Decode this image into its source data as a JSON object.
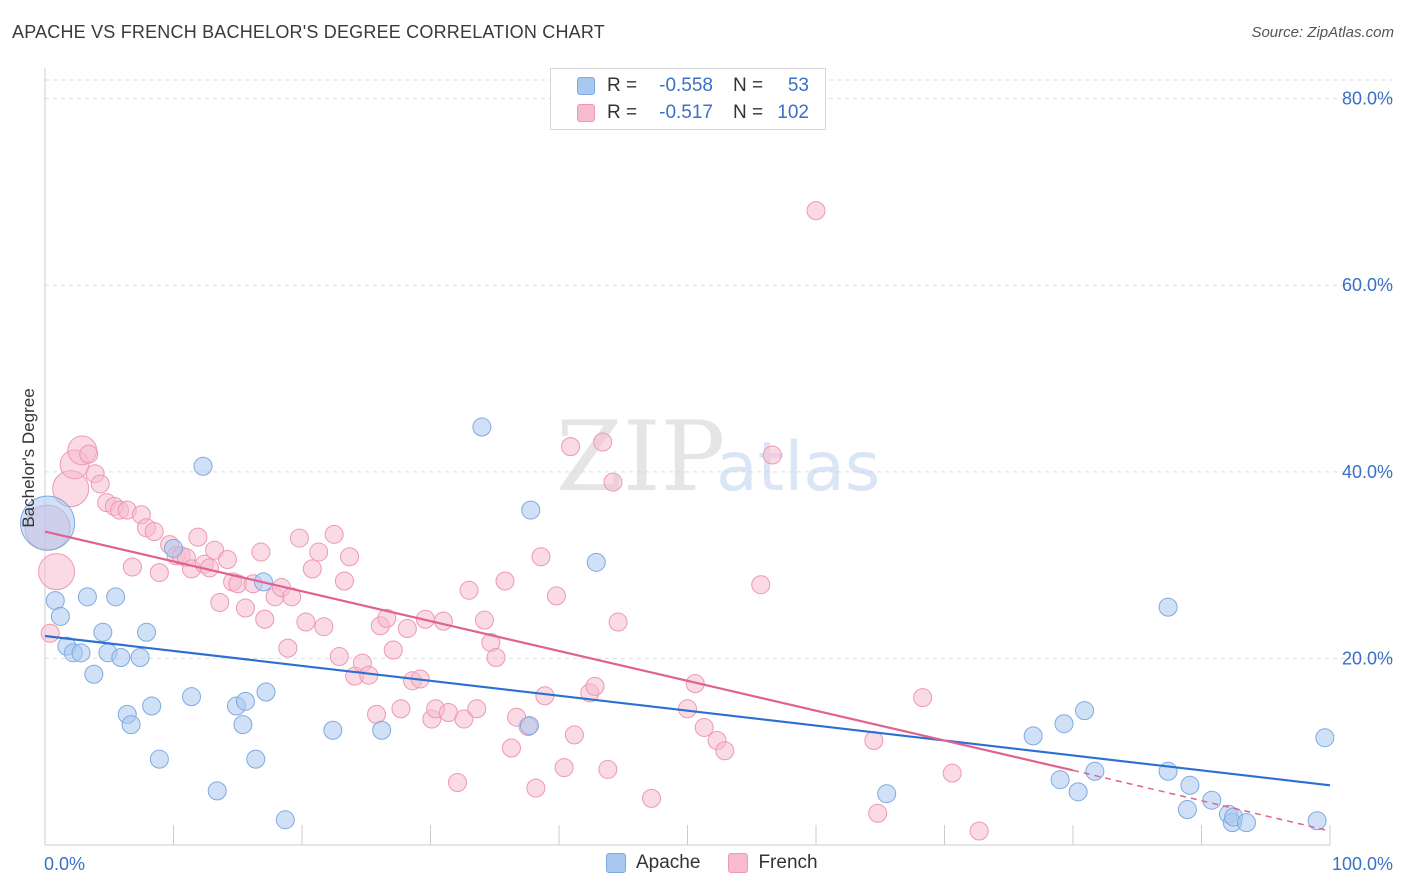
{
  "title": "APACHE VS FRENCH BACHELOR'S DEGREE CORRELATION CHART",
  "source": "Source: ZipAtlas.com",
  "watermark": {
    "zip": "ZIP",
    "atlas": "atlas"
  },
  "colors": {
    "apache_fill": "#a9c8f0",
    "apache_stroke": "#7eaae0",
    "apache_line": "#2b6fd0",
    "french_fill": "#f6bccd",
    "french_stroke": "#ee98b2",
    "french_line": "#e0628e",
    "axis_label": "#3a70c8",
    "grid": "#dddddd"
  },
  "legend": {
    "apache": {
      "r_label": "R =",
      "r_value": "-0.558",
      "n_label": "N =",
      "n_value": "53"
    },
    "french": {
      "r_label": "R =",
      "r_value": "-0.517",
      "n_label": "N =",
      "n_value": "102"
    }
  },
  "chart_data": {
    "type": "scatter",
    "title": "APACHE VS FRENCH BACHELOR'S DEGREE CORRELATION CHART",
    "xlabel": "",
    "ylabel": "Bachelor's Degree",
    "xlim": [
      0,
      100
    ],
    "ylim": [
      0,
      82
    ],
    "x_tick_labels": [
      {
        "value": 0,
        "label": "0.0%"
      },
      {
        "value": 100,
        "label": "100.0%"
      }
    ],
    "y_tick_labels": [
      {
        "value": 20,
        "label": "20.0%"
      },
      {
        "value": 40,
        "label": "40.0%"
      },
      {
        "value": 60,
        "label": "60.0%"
      },
      {
        "value": 80,
        "label": "80.0%"
      }
    ],
    "grid": true,
    "legend_position": "bottom-center",
    "series": [
      {
        "name": "Apache",
        "r": -0.558,
        "n": 53,
        "trend": {
          "x": [
            0,
            100
          ],
          "y": [
            22.4,
            6.4
          ]
        },
        "points": [
          {
            "x": 0.2,
            "y": 34.5,
            "s": 3
          },
          {
            "x": 0.8,
            "y": 26.2,
            "s": 1
          },
          {
            "x": 1.2,
            "y": 24.5,
            "s": 1
          },
          {
            "x": 1.7,
            "y": 21.3,
            "s": 1
          },
          {
            "x": 2.2,
            "y": 20.6,
            "s": 1
          },
          {
            "x": 2.8,
            "y": 20.6,
            "s": 1
          },
          {
            "x": 3.3,
            "y": 26.6,
            "s": 1
          },
          {
            "x": 3.8,
            "y": 18.3,
            "s": 1
          },
          {
            "x": 4.5,
            "y": 22.8,
            "s": 1
          },
          {
            "x": 4.9,
            "y": 20.6,
            "s": 1
          },
          {
            "x": 5.5,
            "y": 26.6,
            "s": 1
          },
          {
            "x": 5.9,
            "y": 20.1,
            "s": 1
          },
          {
            "x": 6.4,
            "y": 14.0,
            "s": 1
          },
          {
            "x": 6.7,
            "y": 12.9,
            "s": 1
          },
          {
            "x": 7.4,
            "y": 20.1,
            "s": 1
          },
          {
            "x": 7.9,
            "y": 22.8,
            "s": 1
          },
          {
            "x": 8.3,
            "y": 14.9,
            "s": 1
          },
          {
            "x": 8.9,
            "y": 9.2,
            "s": 1
          },
          {
            "x": 10.0,
            "y": 31.8,
            "s": 1
          },
          {
            "x": 11.4,
            "y": 15.9,
            "s": 1
          },
          {
            "x": 12.3,
            "y": 40.6,
            "s": 1
          },
          {
            "x": 13.4,
            "y": 5.8,
            "s": 1
          },
          {
            "x": 14.9,
            "y": 14.9,
            "s": 1
          },
          {
            "x": 15.4,
            "y": 12.9,
            "s": 1
          },
          {
            "x": 15.6,
            "y": 15.4,
            "s": 1
          },
          {
            "x": 16.4,
            "y": 9.2,
            "s": 1
          },
          {
            "x": 17.0,
            "y": 28.2,
            "s": 1
          },
          {
            "x": 17.2,
            "y": 16.4,
            "s": 1
          },
          {
            "x": 18.7,
            "y": 2.7,
            "s": 1
          },
          {
            "x": 22.4,
            "y": 12.3,
            "s": 1
          },
          {
            "x": 26.2,
            "y": 12.3,
            "s": 1
          },
          {
            "x": 34.0,
            "y": 44.8,
            "s": 1
          },
          {
            "x": 37.7,
            "y": 12.8,
            "s": 1
          },
          {
            "x": 37.8,
            "y": 35.9,
            "s": 1
          },
          {
            "x": 42.9,
            "y": 30.3,
            "s": 1
          },
          {
            "x": 65.5,
            "y": 5.5,
            "s": 1
          },
          {
            "x": 76.9,
            "y": 11.7,
            "s": 1
          },
          {
            "x": 79.0,
            "y": 7.0,
            "s": 1
          },
          {
            "x": 79.3,
            "y": 13.0,
            "s": 1
          },
          {
            "x": 80.4,
            "y": 5.7,
            "s": 1
          },
          {
            "x": 80.9,
            "y": 14.4,
            "s": 1
          },
          {
            "x": 81.7,
            "y": 7.9,
            "s": 1
          },
          {
            "x": 87.4,
            "y": 25.5,
            "s": 1
          },
          {
            "x": 87.4,
            "y": 7.9,
            "s": 1
          },
          {
            "x": 88.9,
            "y": 3.8,
            "s": 1
          },
          {
            "x": 89.1,
            "y": 6.4,
            "s": 1
          },
          {
            "x": 90.8,
            "y": 4.8,
            "s": 1
          },
          {
            "x": 92.1,
            "y": 3.3,
            "s": 1
          },
          {
            "x": 92.4,
            "y": 2.4,
            "s": 1
          },
          {
            "x": 92.5,
            "y": 3.0,
            "s": 1
          },
          {
            "x": 93.5,
            "y": 2.4,
            "s": 1
          },
          {
            "x": 99.0,
            "y": 2.6,
            "s": 1
          },
          {
            "x": 99.6,
            "y": 11.5,
            "s": 1
          }
        ]
      },
      {
        "name": "French",
        "r": -0.517,
        "n": 102,
        "trend": {
          "x": [
            0,
            80
          ],
          "y": [
            33.6,
            8.0
          ]
        },
        "trend_extension": {
          "x": [
            80,
            100
          ],
          "y": [
            8.0,
            1.5
          ]
        },
        "points": [
          {
            "x": 0.2,
            "y": 34.0,
            "s": 2.5
          },
          {
            "x": 0.4,
            "y": 22.7,
            "s": 1
          },
          {
            "x": 0.9,
            "y": 29.3,
            "s": 2
          },
          {
            "x": 2.0,
            "y": 38.2,
            "s": 2
          },
          {
            "x": 2.3,
            "y": 40.8,
            "s": 1.6
          },
          {
            "x": 2.9,
            "y": 42.3,
            "s": 1.6
          },
          {
            "x": 3.4,
            "y": 41.9,
            "s": 1
          },
          {
            "x": 3.9,
            "y": 39.8,
            "s": 1
          },
          {
            "x": 4.3,
            "y": 38.7,
            "s": 1
          },
          {
            "x": 4.8,
            "y": 36.7,
            "s": 1
          },
          {
            "x": 5.4,
            "y": 36.3,
            "s": 1
          },
          {
            "x": 5.8,
            "y": 35.9,
            "s": 1
          },
          {
            "x": 6.4,
            "y": 35.9,
            "s": 1
          },
          {
            "x": 6.8,
            "y": 29.8,
            "s": 1
          },
          {
            "x": 7.5,
            "y": 35.4,
            "s": 1
          },
          {
            "x": 7.9,
            "y": 34.0,
            "s": 1
          },
          {
            "x": 8.5,
            "y": 33.6,
            "s": 1
          },
          {
            "x": 8.9,
            "y": 29.2,
            "s": 1
          },
          {
            "x": 9.7,
            "y": 32.2,
            "s": 1
          },
          {
            "x": 10.2,
            "y": 31.0,
            "s": 1
          },
          {
            "x": 10.6,
            "y": 31.0,
            "s": 1
          },
          {
            "x": 11.0,
            "y": 30.8,
            "s": 1
          },
          {
            "x": 11.4,
            "y": 29.6,
            "s": 1
          },
          {
            "x": 11.9,
            "y": 33.0,
            "s": 1
          },
          {
            "x": 12.4,
            "y": 30.1,
            "s": 1
          },
          {
            "x": 12.8,
            "y": 29.7,
            "s": 1
          },
          {
            "x": 13.2,
            "y": 31.6,
            "s": 1
          },
          {
            "x": 13.6,
            "y": 26.0,
            "s": 1
          },
          {
            "x": 14.2,
            "y": 30.6,
            "s": 1
          },
          {
            "x": 14.6,
            "y": 28.2,
            "s": 1
          },
          {
            "x": 15.0,
            "y": 28.0,
            "s": 1
          },
          {
            "x": 15.6,
            "y": 25.4,
            "s": 1
          },
          {
            "x": 16.2,
            "y": 28.0,
            "s": 1
          },
          {
            "x": 16.8,
            "y": 31.4,
            "s": 1
          },
          {
            "x": 17.1,
            "y": 24.2,
            "s": 1
          },
          {
            "x": 17.9,
            "y": 26.6,
            "s": 1
          },
          {
            "x": 18.4,
            "y": 27.6,
            "s": 1
          },
          {
            "x": 18.9,
            "y": 21.1,
            "s": 1
          },
          {
            "x": 19.2,
            "y": 26.6,
            "s": 1
          },
          {
            "x": 19.8,
            "y": 32.9,
            "s": 1
          },
          {
            "x": 20.3,
            "y": 23.9,
            "s": 1
          },
          {
            "x": 20.8,
            "y": 29.6,
            "s": 1
          },
          {
            "x": 21.3,
            "y": 31.4,
            "s": 1
          },
          {
            "x": 21.7,
            "y": 23.4,
            "s": 1
          },
          {
            "x": 22.5,
            "y": 33.3,
            "s": 1
          },
          {
            "x": 22.9,
            "y": 20.2,
            "s": 1
          },
          {
            "x": 23.3,
            "y": 28.3,
            "s": 1
          },
          {
            "x": 23.7,
            "y": 30.9,
            "s": 1
          },
          {
            "x": 24.1,
            "y": 18.1,
            "s": 1
          },
          {
            "x": 24.7,
            "y": 19.5,
            "s": 1
          },
          {
            "x": 25.2,
            "y": 18.2,
            "s": 1
          },
          {
            "x": 25.8,
            "y": 14.0,
            "s": 1
          },
          {
            "x": 26.1,
            "y": 23.5,
            "s": 1
          },
          {
            "x": 26.6,
            "y": 24.3,
            "s": 1
          },
          {
            "x": 27.1,
            "y": 20.9,
            "s": 1
          },
          {
            "x": 27.7,
            "y": 14.6,
            "s": 1
          },
          {
            "x": 28.2,
            "y": 23.2,
            "s": 1
          },
          {
            "x": 28.6,
            "y": 17.6,
            "s": 1
          },
          {
            "x": 29.2,
            "y": 17.8,
            "s": 1
          },
          {
            "x": 29.6,
            "y": 24.2,
            "s": 1
          },
          {
            "x": 30.1,
            "y": 13.5,
            "s": 1
          },
          {
            "x": 30.4,
            "y": 14.6,
            "s": 1
          },
          {
            "x": 31.0,
            "y": 24.0,
            "s": 1
          },
          {
            "x": 31.4,
            "y": 14.2,
            "s": 1
          },
          {
            "x": 32.1,
            "y": 6.7,
            "s": 1
          },
          {
            "x": 32.6,
            "y": 13.5,
            "s": 1
          },
          {
            "x": 33.0,
            "y": 27.3,
            "s": 1
          },
          {
            "x": 33.6,
            "y": 14.6,
            "s": 1
          },
          {
            "x": 34.2,
            "y": 24.1,
            "s": 1
          },
          {
            "x": 34.7,
            "y": 21.7,
            "s": 1
          },
          {
            "x": 35.1,
            "y": 20.1,
            "s": 1
          },
          {
            "x": 35.8,
            "y": 28.3,
            "s": 1
          },
          {
            "x": 36.3,
            "y": 10.4,
            "s": 1
          },
          {
            "x": 36.7,
            "y": 13.7,
            "s": 1
          },
          {
            "x": 37.6,
            "y": 12.7,
            "s": 1
          },
          {
            "x": 38.2,
            "y": 6.1,
            "s": 1
          },
          {
            "x": 38.6,
            "y": 30.9,
            "s": 1
          },
          {
            "x": 38.9,
            "y": 16.0,
            "s": 1
          },
          {
            "x": 39.8,
            "y": 26.7,
            "s": 1
          },
          {
            "x": 40.4,
            "y": 8.3,
            "s": 1
          },
          {
            "x": 40.9,
            "y": 42.7,
            "s": 1
          },
          {
            "x": 41.2,
            "y": 11.8,
            "s": 1
          },
          {
            "x": 42.4,
            "y": 16.3,
            "s": 1
          },
          {
            "x": 42.8,
            "y": 17.0,
            "s": 1
          },
          {
            "x": 43.4,
            "y": 43.2,
            "s": 1
          },
          {
            "x": 43.8,
            "y": 8.1,
            "s": 1
          },
          {
            "x": 44.2,
            "y": 38.9,
            "s": 1
          },
          {
            "x": 44.6,
            "y": 23.9,
            "s": 1
          },
          {
            "x": 47.2,
            "y": 5.0,
            "s": 1
          },
          {
            "x": 50.0,
            "y": 14.6,
            "s": 1
          },
          {
            "x": 50.6,
            "y": 17.3,
            "s": 1
          },
          {
            "x": 51.3,
            "y": 12.6,
            "s": 1
          },
          {
            "x": 52.3,
            "y": 11.2,
            "s": 1
          },
          {
            "x": 52.9,
            "y": 10.1,
            "s": 1
          },
          {
            "x": 55.7,
            "y": 27.9,
            "s": 1
          },
          {
            "x": 56.6,
            "y": 41.8,
            "s": 1
          },
          {
            "x": 60.0,
            "y": 68.0,
            "s": 1
          },
          {
            "x": 64.5,
            "y": 11.2,
            "s": 1
          },
          {
            "x": 64.8,
            "y": 3.4,
            "s": 1
          },
          {
            "x": 68.3,
            "y": 15.8,
            "s": 1
          },
          {
            "x": 70.6,
            "y": 7.7,
            "s": 1
          },
          {
            "x": 72.7,
            "y": 1.5,
            "s": 1
          }
        ]
      }
    ]
  }
}
